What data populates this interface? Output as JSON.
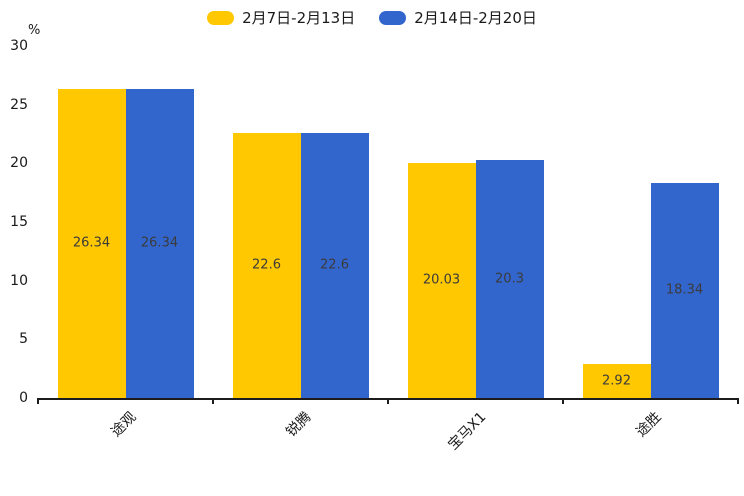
{
  "chart_data": {
    "type": "bar",
    "categories": [
      "途观",
      "锐腾",
      "宝马X1",
      "途胜"
    ],
    "series": [
      {
        "name": "2月7日-2月13日",
        "color": "#FFC800",
        "values": [
          26.34,
          22.6,
          20.03,
          2.92
        ]
      },
      {
        "name": "2月14日-2月20日",
        "color": "#3366CC",
        "values": [
          26.34,
          22.6,
          20.3,
          18.34
        ]
      }
    ],
    "data_labels": [
      "26.34",
      "22.6",
      "20.03",
      "2.92",
      "26.34",
      "22.6",
      "20.3",
      "18.34"
    ],
    "title": "",
    "xlabel": "",
    "ylabel": "%",
    "ylim": [
      0,
      30
    ],
    "yticks": [
      0,
      5,
      10,
      15,
      20,
      25,
      30
    ],
    "grid": false,
    "legend_position": "top",
    "label_position": "inside-middle"
  }
}
